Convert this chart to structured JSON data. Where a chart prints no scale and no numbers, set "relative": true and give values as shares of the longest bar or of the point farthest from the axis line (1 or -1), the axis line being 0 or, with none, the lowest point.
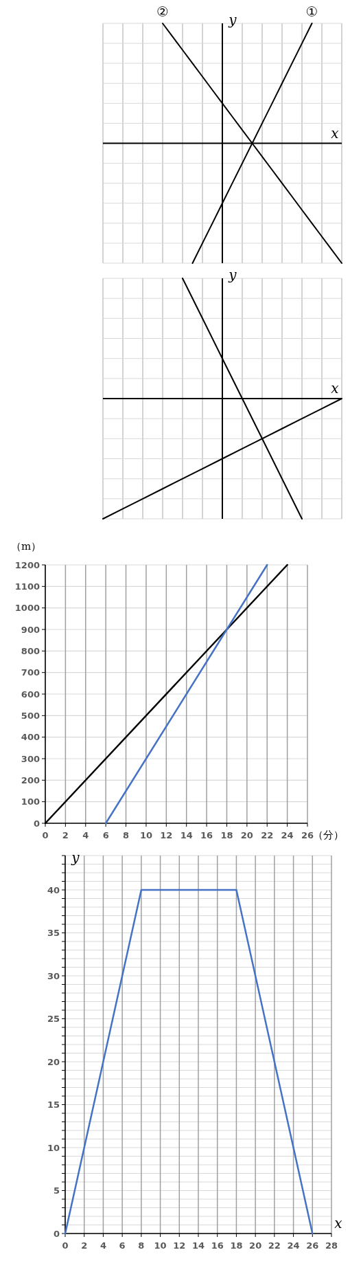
{
  "chart_data": [
    {
      "type": "line",
      "relative": true,
      "xlabel": "x",
      "ylabel": "y",
      "grid": true,
      "categories": [
        null,
        null,
        null,
        null,
        null,
        null,
        null,
        null,
        null,
        null,
        null,
        null,
        null,
        null,
        null,
        null,
        null,
        null,
        null,
        null,
        null,
        null,
        null,
        null,
        null
      ],
      "series": [
        {
          "name": "①",
          "color": "#000000",
          "values": [
            null,
            null,
            null,
            null,
            null,
            null,
            null,
            null,
            null,
            -1,
            -0.833,
            -0.667,
            -0.5,
            -0.333,
            -0.167,
            0,
            0.167,
            0.333,
            0.5,
            0.667,
            0.833,
            1,
            null,
            null,
            null
          ]
        },
        {
          "name": "②",
          "color": "#000000",
          "values": [
            null,
            null,
            null,
            null,
            null,
            null,
            1,
            0.889,
            0.778,
            0.667,
            0.556,
            0.444,
            0.333,
            0.222,
            0.111,
            0,
            -0.111,
            -0.222,
            -0.333,
            -0.444,
            -0.556,
            -0.667,
            -0.778,
            -0.889,
            -1
          ]
        }
      ]
    },
    {
      "type": "line",
      "relative": true,
      "xlabel": "x",
      "ylabel": "y",
      "grid": true,
      "categories": [
        null,
        null,
        null,
        null,
        null,
        null,
        null,
        null,
        null,
        null,
        null,
        null,
        null
      ],
      "series": [
        {
          "color": "#000000",
          "values": [
            null,
            null,
            null,
            null,
            1,
            0.667,
            0.333,
            0,
            -0.333,
            -0.667,
            -1,
            null,
            null
          ]
        },
        {
          "color": "#000000",
          "values": [
            -1,
            -0.917,
            -0.833,
            -0.75,
            -0.667,
            -0.583,
            -0.5,
            -0.417,
            -0.333,
            -0.25,
            -0.167,
            -0.083,
            0
          ]
        }
      ]
    },
    {
      "type": "line",
      "xlabel": "（分）",
      "ylabel": "（m）",
      "grid": true,
      "xlim": [
        0,
        26
      ],
      "xticks": [
        0,
        2,
        4,
        6,
        8,
        10,
        12,
        14,
        16,
        18,
        20,
        22,
        24,
        26
      ],
      "ylim": [
        0,
        1200
      ],
      "yticks": [
        0,
        100,
        200,
        300,
        400,
        500,
        600,
        700,
        800,
        900,
        1000,
        1100,
        1200
      ],
      "series": [
        {
          "color": "#000000",
          "x": [
            0,
            24
          ],
          "values": [
            0,
            1200
          ]
        },
        {
          "color": "#4472c4",
          "x": [
            6,
            22
          ],
          "values": [
            0,
            1200
          ]
        }
      ]
    },
    {
      "type": "line",
      "xlabel": "x",
      "ylabel": "y",
      "grid": true,
      "xlim": [
        0,
        28
      ],
      "xticks": [
        0,
        2,
        4,
        6,
        8,
        10,
        12,
        14,
        16,
        18,
        20,
        22,
        24,
        26,
        28
      ],
      "ylim": [
        0,
        44
      ],
      "yticks": [
        0,
        {
          "value": 1,
          "label": null
        },
        {
          "value": 2,
          "label": null
        },
        {
          "value": 3,
          "label": null
        },
        {
          "value": 4,
          "label": null
        },
        5,
        {
          "value": 6,
          "label": null
        },
        {
          "value": 7,
          "label": null
        },
        {
          "value": 8,
          "label": null
        },
        {
          "value": 9,
          "label": null
        },
        10,
        {
          "value": 11,
          "label": null
        },
        {
          "value": 12,
          "label": null
        },
        {
          "value": 13,
          "label": null
        },
        {
          "value": 14,
          "label": null
        },
        15,
        {
          "value": 16,
          "label": null
        },
        {
          "value": 17,
          "label": null
        },
        {
          "value": 18,
          "label": null
        },
        {
          "value": 19,
          "label": null
        },
        20,
        {
          "value": 21,
          "label": null
        },
        {
          "value": 22,
          "label": null
        },
        {
          "value": 23,
          "label": null
        },
        {
          "value": 24,
          "label": null
        },
        25,
        {
          "value": 26,
          "label": null
        },
        {
          "value": 27,
          "label": null
        },
        {
          "value": 28,
          "label": null
        },
        {
          "value": 29,
          "label": null
        },
        30,
        {
          "value": 31,
          "label": null
        },
        {
          "value": 32,
          "label": null
        },
        {
          "value": 33,
          "label": null
        },
        {
          "value": 34,
          "label": null
        },
        35,
        {
          "value": 36,
          "label": null
        },
        {
          "value": 37,
          "label": null
        },
        {
          "value": 38,
          "label": null
        },
        {
          "value": 39,
          "label": null
        },
        40,
        {
          "value": 41,
          "label": null
        },
        {
          "value": 42,
          "label": null
        },
        {
          "value": 43,
          "label": null
        },
        {
          "value": 44,
          "label": null
        }
      ],
      "series": [
        {
          "color": "#4472c4",
          "x": [
            0,
            8,
            18,
            26
          ],
          "values": [
            0,
            40,
            40,
            0
          ]
        }
      ]
    }
  ]
}
